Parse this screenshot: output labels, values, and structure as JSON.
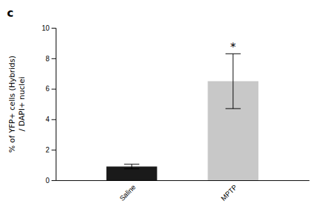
{
  "chart_data": {
    "type": "bar",
    "title": "c",
    "categories": [
      "Saline",
      "MPTP"
    ],
    "values": [
      0.9,
      6.5
    ],
    "errors": [
      0.15,
      1.8
    ],
    "colors": [
      "#1a1a1a",
      "#c8c8c8"
    ],
    "ylabel": "% of YFP+ cells (Hybrids)\n/ DAPI+ nuclei",
    "annotations": [
      {
        "text": "*",
        "category": "MPTP"
      }
    ],
    "ylim": [
      0,
      10
    ],
    "yticks": [
      0,
      2,
      4,
      6,
      8,
      10
    ],
    "grid": false
  }
}
